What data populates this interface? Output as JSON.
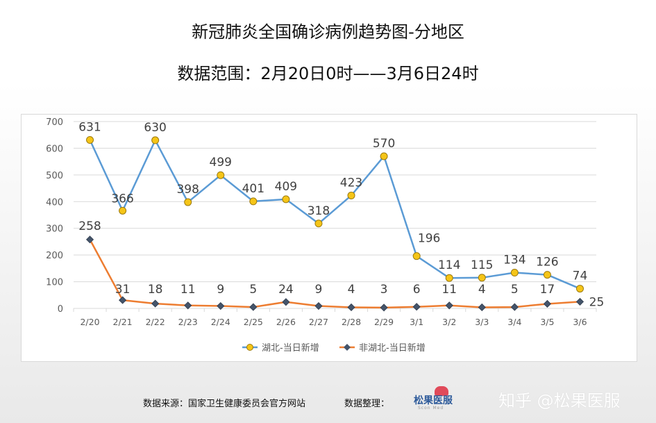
{
  "title": "新冠肺炎全国确诊病例趋势图-分地区",
  "subtitle": "数据范围：2月20日0时——3月6日24时",
  "footer": {
    "source": "数据来源：国家卫生健康委员会官方网站",
    "curator": "数据整理：",
    "logo_text": "松果医服",
    "logo_sub": "Scon Med"
  },
  "watermark": "知乎 @松果医服",
  "colors": {
    "hubei_line": "#5b9bd5",
    "hubei_marker": "#f5c518",
    "other_line": "#ed7d31",
    "other_marker": "#44546a",
    "grid": "#d9d9d9"
  },
  "chart_data": {
    "type": "line",
    "categories": [
      "2/20",
      "2/21",
      "2/22",
      "2/23",
      "2/24",
      "2/25",
      "2/26",
      "2/27",
      "2/28",
      "2/29",
      "3/1",
      "3/2",
      "3/3",
      "3/4",
      "3/5",
      "3/6"
    ],
    "series": [
      {
        "name": "湖北-当日新增",
        "values": [
          631,
          366,
          630,
          398,
          499,
          401,
          409,
          318,
          423,
          570,
          196,
          114,
          115,
          134,
          126,
          74
        ]
      },
      {
        "name": "非湖北-当日新增",
        "values": [
          258,
          31,
          18,
          11,
          9,
          5,
          24,
          9,
          4,
          3,
          6,
          11,
          4,
          5,
          17,
          25
        ]
      }
    ],
    "y_ticks": [
      0,
      100,
      200,
      300,
      400,
      500,
      600,
      700
    ],
    "ylim": [
      0,
      700
    ],
    "grid": true,
    "legend": "bottom"
  }
}
